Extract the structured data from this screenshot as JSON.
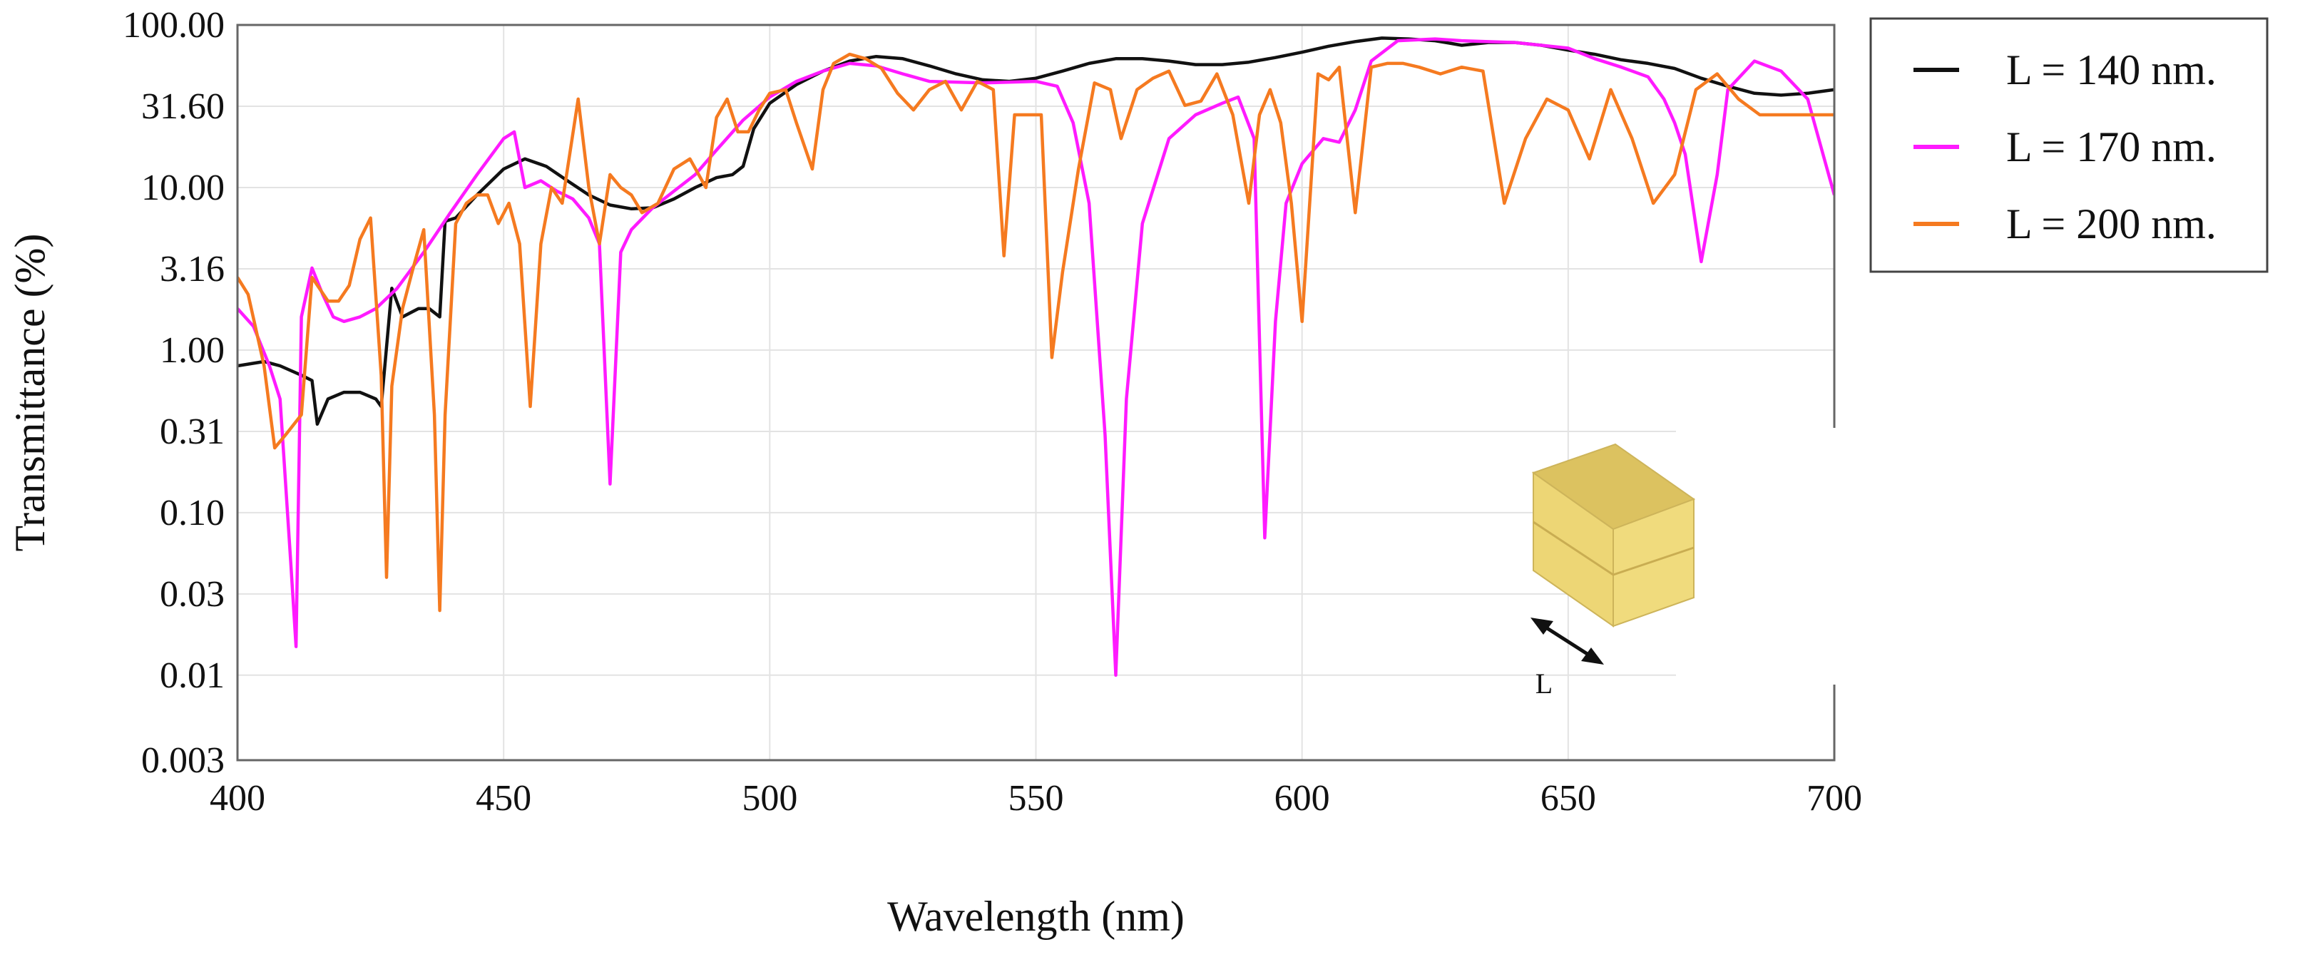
{
  "chart_data": {
    "type": "line",
    "title": "",
    "xlabel": "Wavelength (nm)",
    "ylabel": "Transmittance (%)",
    "x_scale": "linear",
    "y_scale": "log",
    "xlim": [
      400,
      700
    ],
    "ylim": [
      0.003,
      100
    ],
    "x_ticks": [
      400,
      450,
      500,
      550,
      600,
      650,
      700
    ],
    "y_ticks": [
      {
        "value": 0.003,
        "label": "0.003"
      },
      {
        "value": 0.01,
        "label": "0.01"
      },
      {
        "value": 0.0316,
        "label": "0.03"
      },
      {
        "value": 0.1,
        "label": "0.10"
      },
      {
        "value": 0.316,
        "label": "0.31"
      },
      {
        "value": 1,
        "label": "1.00"
      },
      {
        "value": 3.16,
        "label": "3.16"
      },
      {
        "value": 10,
        "label": "10.00"
      },
      {
        "value": 31.6,
        "label": "31.60"
      },
      {
        "value": 100,
        "label": "100.00"
      }
    ],
    "grid": true,
    "legend_position": "outside-right",
    "inset_label": "L",
    "series": [
      {
        "name": "L = 140 nm.",
        "color": "#111111",
        "x": [
          400,
          405,
          408,
          412,
          414,
          415,
          417,
          420,
          423,
          426,
          427,
          429,
          431,
          434,
          436,
          438,
          439,
          441,
          445,
          450,
          454,
          458,
          462,
          466,
          470,
          474,
          478,
          482,
          486,
          490,
          493,
          495,
          497,
          500,
          505,
          510,
          515,
          520,
          525,
          530,
          535,
          540,
          545,
          550,
          555,
          560,
          565,
          570,
          575,
          580,
          585,
          590,
          595,
          600,
          605,
          610,
          615,
          620,
          625,
          628,
          630,
          635,
          640,
          645,
          650,
          655,
          660,
          665,
          670,
          675,
          680,
          685,
          690,
          695,
          700
        ],
        "y": [
          0.8,
          0.85,
          0.8,
          0.7,
          0.65,
          0.35,
          0.5,
          0.55,
          0.55,
          0.5,
          0.45,
          2.4,
          1.6,
          1.8,
          1.8,
          1.6,
          6.2,
          6.5,
          9,
          13,
          15,
          13.5,
          11,
          9,
          7.8,
          7.4,
          7.5,
          8.5,
          10,
          11.5,
          12,
          13.5,
          23,
          33,
          43,
          52,
          60,
          64,
          62,
          56,
          50,
          46,
          45,
          47,
          52,
          58,
          62,
          62,
          60,
          57,
          57,
          59,
          63,
          68,
          74,
          79,
          83,
          82,
          80,
          77,
          75,
          78,
          78,
          75,
          70,
          66,
          61,
          58,
          54,
          47,
          42,
          38,
          37,
          38,
          40
        ]
      },
      {
        "name": "L = 170 nm.",
        "color": "#ff1aff",
        "x": [
          400,
          403,
          406,
          408,
          410,
          411,
          412,
          414,
          416,
          418,
          420,
          423,
          426,
          430,
          435,
          440,
          445,
          450,
          452,
          454,
          457,
          460,
          463,
          466,
          468,
          470,
          472,
          474,
          478,
          482,
          486,
          490,
          495,
          500,
          505,
          510,
          515,
          520,
          525,
          530,
          540,
          550,
          554,
          557,
          560,
          563,
          565,
          567,
          570,
          575,
          580,
          585,
          588,
          591,
          593,
          595,
          597,
          600,
          604,
          607,
          610,
          613,
          618,
          625,
          630,
          640,
          650,
          655,
          660,
          665,
          668,
          670,
          672,
          675,
          678,
          680,
          685,
          690,
          695,
          700
        ],
        "y": [
          1.8,
          1.4,
          0.8,
          0.5,
          0.05,
          0.015,
          1.6,
          3.2,
          2.2,
          1.6,
          1.5,
          1.6,
          1.8,
          2.4,
          4,
          7,
          12,
          20,
          22,
          10,
          11,
          9.5,
          8.5,
          6.5,
          4.5,
          0.15,
          4,
          5.5,
          7.5,
          9.5,
          12,
          17,
          26,
          36,
          45,
          52,
          58,
          56,
          50,
          45,
          44,
          45,
          42,
          25,
          8,
          0.3,
          0.01,
          0.5,
          6,
          20,
          28,
          33,
          36,
          20,
          0.07,
          1.5,
          8,
          14,
          20,
          19,
          30,
          60,
          80,
          82,
          80,
          78,
          72,
          62,
          55,
          48,
          35,
          25,
          16,
          3.5,
          12,
          40,
          60,
          52,
          35,
          9
        ]
      },
      {
        "name": "L = 200 nm.",
        "color": "#f57a20",
        "x": [
          400,
          402,
          405,
          407,
          409,
          412,
          414,
          417,
          419,
          421,
          423,
          425,
          427,
          428,
          429,
          431,
          433,
          435,
          437,
          438,
          439,
          441,
          443,
          445,
          447,
          449,
          451,
          453,
          455,
          457,
          459,
          461,
          464,
          466,
          468,
          470,
          472,
          474,
          476,
          479,
          482,
          485,
          488,
          490,
          492,
          494,
          496,
          498,
          500,
          503,
          505,
          508,
          510,
          512,
          515,
          518,
          521,
          524,
          527,
          530,
          533,
          536,
          539,
          542,
          544,
          546,
          548,
          551,
          553,
          555,
          558,
          561,
          564,
          566,
          569,
          572,
          575,
          578,
          581,
          584,
          587,
          590,
          592,
          594,
          596,
          598,
          600,
          603,
          605,
          607,
          610,
          613,
          616,
          619,
          622,
          626,
          630,
          634,
          638,
          642,
          646,
          650,
          654,
          658,
          662,
          666,
          670,
          674,
          678,
          682,
          686,
          690,
          694,
          698,
          700
        ],
        "y": [
          2.8,
          2.2,
          0.8,
          0.25,
          0.3,
          0.4,
          2.8,
          2.0,
          2.0,
          2.5,
          4.8,
          6.5,
          0.7,
          0.04,
          0.6,
          1.8,
          3.2,
          5.5,
          0.4,
          0.025,
          0.4,
          6,
          8,
          9,
          9,
          6,
          8,
          4.5,
          0.45,
          4.5,
          10,
          8,
          35,
          10,
          4.5,
          12,
          10,
          9,
          7,
          8,
          13,
          15,
          10,
          27,
          35,
          22,
          22,
          30,
          38,
          40,
          25,
          13,
          40,
          58,
          66,
          62,
          54,
          38,
          30,
          40,
          45,
          30,
          45,
          40,
          3.8,
          28,
          28,
          28,
          0.9,
          3,
          13,
          44,
          40,
          20,
          40,
          47,
          52,
          32,
          34,
          50,
          28,
          8,
          28,
          40,
          25,
          8,
          1.5,
          50,
          46,
          55,
          7,
          55,
          58,
          58,
          55,
          50,
          55,
          52,
          8,
          20,
          35,
          30,
          15,
          40,
          20,
          8,
          12,
          40,
          50,
          35,
          28,
          28,
          28,
          28,
          28
        ]
      }
    ]
  }
}
